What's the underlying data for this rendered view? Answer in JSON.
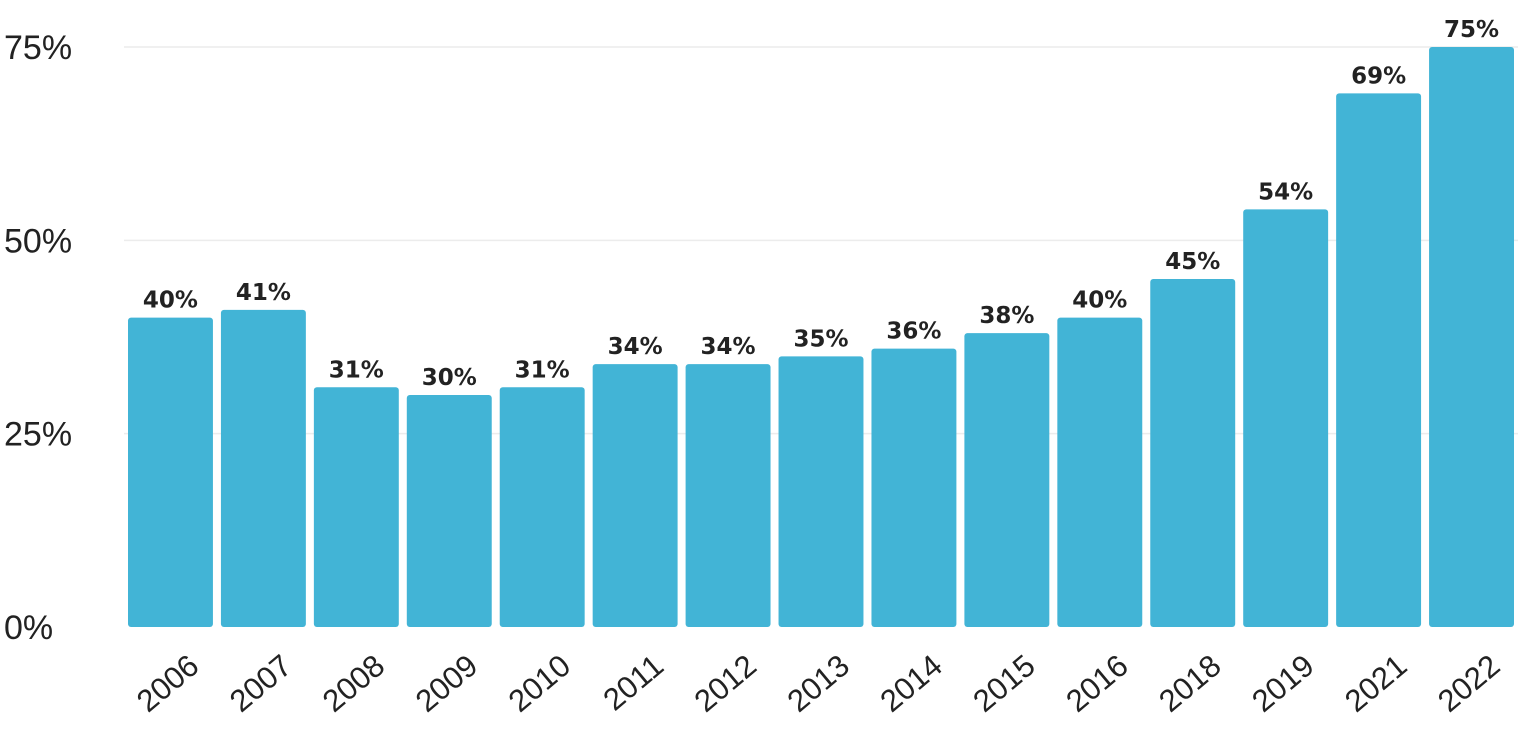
{
  "chart_data": {
    "type": "bar",
    "title": "",
    "xlabel": "",
    "ylabel": "",
    "categories": [
      "2006",
      "2007",
      "2008",
      "2009",
      "2010",
      "2011",
      "2012",
      "2013",
      "2014",
      "2015",
      "2016",
      "2018",
      "2019",
      "2021",
      "2022"
    ],
    "values": [
      40,
      41,
      31,
      30,
      31,
      34,
      34,
      35,
      36,
      38,
      40,
      45,
      54,
      69,
      75
    ],
    "data_labels": [
      "40%",
      "41%",
      "31%",
      "30%",
      "31%",
      "34%",
      "34%",
      "35%",
      "36%",
      "38%",
      "40%",
      "45%",
      "54%",
      "69%",
      "75%"
    ],
    "ylim": [
      0,
      75
    ],
    "yticks": [
      0,
      25,
      50,
      75
    ],
    "ytick_labels": [
      "0%",
      "25%",
      "50%",
      "75%"
    ],
    "grid": true,
    "legend": "none",
    "bar_color": "#42b4d6"
  }
}
